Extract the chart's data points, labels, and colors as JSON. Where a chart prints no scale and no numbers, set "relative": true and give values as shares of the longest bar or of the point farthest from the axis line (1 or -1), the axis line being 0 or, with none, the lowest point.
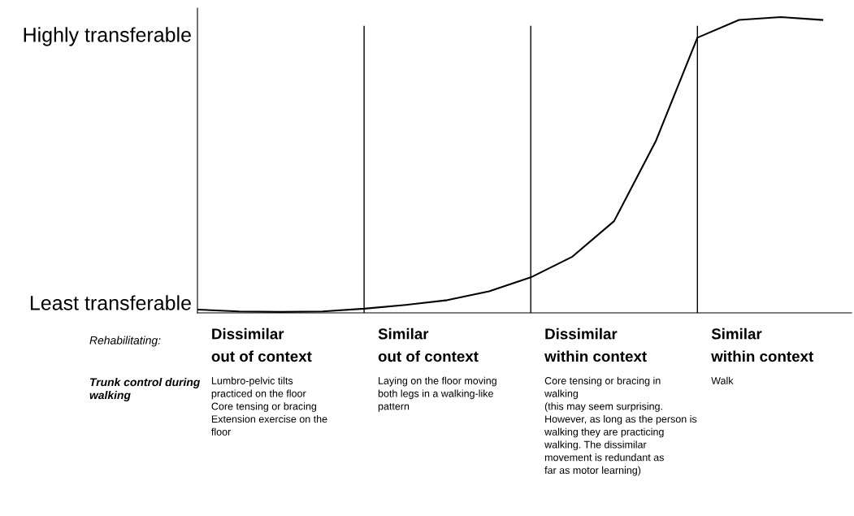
{
  "chart_data": {
    "type": "line",
    "relative": true,
    "categories": [
      null,
      null,
      null,
      null,
      null,
      null,
      null,
      null,
      null,
      null,
      null,
      null,
      null,
      null,
      null,
      null
    ],
    "series": [
      {
        "color": "#000000",
        "values": [
          0.011,
          0.005,
          0.003,
          0.005,
          0.014,
          0.027,
          0.043,
          0.073,
          0.12,
          0.19,
          0.31,
          0.58,
          0.93,
          0.99,
          1,
          0.99
        ]
      }
    ],
    "grid": "x",
    "legend": false,
    "marker": "none",
    "line_style": "solid",
    "annotations": [
      "Least transferable",
      "Highly transferable",
      "Dissimilar\nout of context",
      "Similar\nout of context",
      "Dissimilar\nwithin context",
      "Similar\nwithin context",
      "Rehabilitating:",
      "Trunk control during\nwalking",
      "Lumbro-pelvic tilts\npracticed on the floor\nCore tensing or bracing\nExtension exercise on the\nfloor",
      "Laying on the floor moving\nboth legs in a walking-like\npattern",
      "Core tensing or bracing in\nwalking\n(this may seem surprising.\nHowever, as long as the person is\nwalking they are practicing\nwalking. The dissimilar\nmovement is redundant as\nfar as motor learning)",
      "Walk"
    ]
  }
}
